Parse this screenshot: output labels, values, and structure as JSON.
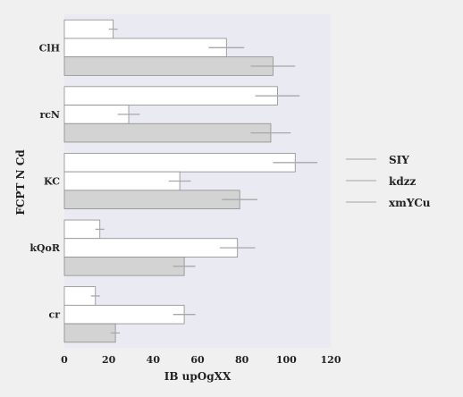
{
  "chart_data": {
    "type": "bar",
    "orientation": "horizontal",
    "categories": [
      "ClH",
      "rcN",
      "KC",
      "kQoR",
      "cr"
    ],
    "series": [
      {
        "name": "SIY",
        "color": "#ffffff",
        "values": [
          22,
          96,
          104,
          16,
          14
        ],
        "errors": [
          2,
          10,
          10,
          2,
          2
        ]
      },
      {
        "name": "kdzz",
        "color": "#ffffff",
        "values": [
          73,
          29,
          52,
          78,
          54
        ],
        "errors": [
          8,
          5,
          5,
          8,
          5
        ]
      },
      {
        "name": "xmYCu",
        "color": "#d3d3d3",
        "values": [
          94,
          93,
          79,
          54,
          23
        ],
        "errors": [
          10,
          9,
          8,
          5,
          2
        ]
      }
    ],
    "xlabel": "IB upOgXX",
    "ylabel": "FCPT N Cd",
    "xlim": [
      0,
      120
    ],
    "xticks": [
      0,
      20,
      40,
      60,
      80,
      100,
      120
    ],
    "grid": false,
    "legend_position": "right",
    "plot_background": "#eaeaf2"
  }
}
